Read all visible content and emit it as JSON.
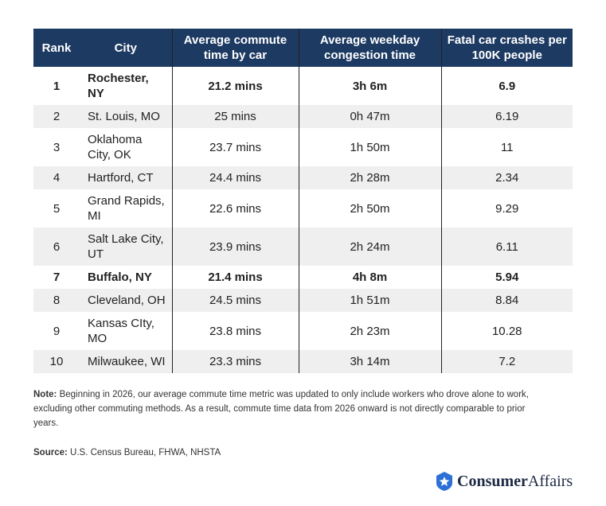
{
  "table": {
    "header": [
      "Rank",
      "City",
      "Average commute time by car",
      "Average weekday congestion time",
      "Fatal car crashes per 100K people"
    ],
    "rows": [
      [
        "1",
        "Rochester, NY",
        "21.2 mins",
        "3h 6m",
        "6.9"
      ],
      [
        "2",
        "St. Louis, MO",
        "25 mins",
        "0h 47m",
        "6.19"
      ],
      [
        "3",
        "Oklahoma City, OK",
        "23.7 mins",
        "1h 50m",
        "11"
      ],
      [
        "4",
        "Hartford, CT",
        "24.4 mins",
        "2h 28m",
        "2.34"
      ],
      [
        "5",
        "Grand Rapids, MI",
        "22.6 mins",
        "2h 50m",
        "9.29"
      ],
      [
        "6",
        "Salt Lake City, UT",
        "23.9 mins",
        "2h 24m",
        "6.11"
      ],
      [
        "7",
        "Buffalo, NY",
        "21.4 mins",
        "4h 8m",
        "5.94"
      ],
      [
        "8",
        "Cleveland, OH",
        "24.5 mins",
        "1h 51m",
        "8.84"
      ],
      [
        "9",
        "Kansas CIty, MO",
        "23.8 mins",
        "2h 23m",
        "10.28"
      ],
      [
        "10",
        "Milwaukee, WI",
        "23.3 mins",
        "3h 14m",
        "7.2"
      ]
    ]
  },
  "note": {
    "label": "Note:",
    "text": "Beginning in 2026, our average commute time metric was updated to only include workers who drove alone to work, excluding other commuting methods. As a result, commute time data from 2026 onward is not directly comparable to prior years."
  },
  "source": {
    "label": "Source:",
    "text": "U.S. Census Bureau, FHWA, NHSTA"
  },
  "logo": {
    "bold": "Consumer",
    "light": "Affairs"
  }
}
